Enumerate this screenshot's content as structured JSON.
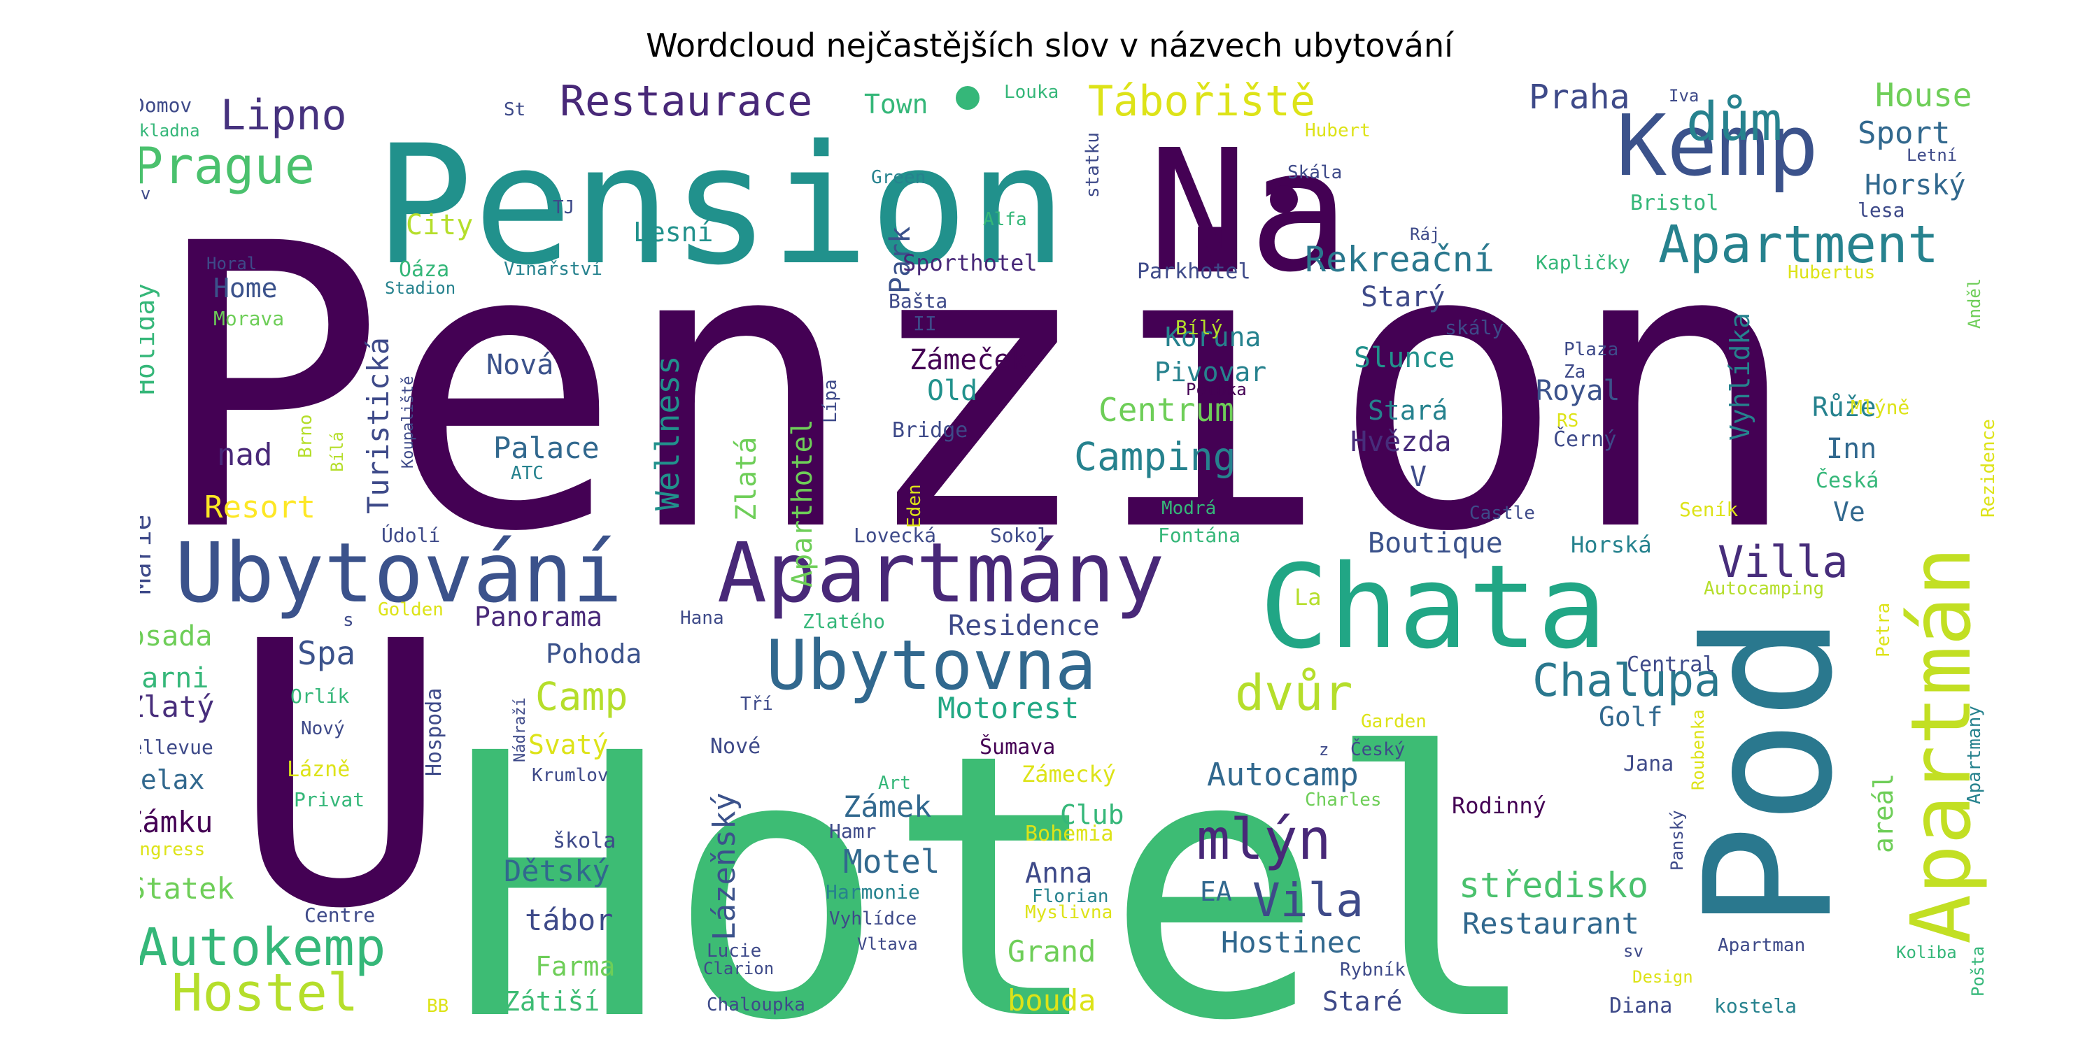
{
  "chart_data": {
    "type": "wordcloud",
    "title": "Wordcloud nejčastějších slov v názvech ubytování",
    "palette": [
      "#440154",
      "#482878",
      "#3e4a89",
      "#31688e",
      "#26828e",
      "#1f9e89",
      "#35b779",
      "#6ece58",
      "#b5de2b",
      "#fde725"
    ],
    "words": [
      {
        "text": "Penzion",
        "weight": 100,
        "color": "#440154"
      },
      {
        "text": "Hotel",
        "weight": 92,
        "color": "#3dbc74"
      },
      {
        "text": "Pension",
        "weight": 70,
        "color": "#21918c"
      },
      {
        "text": "U",
        "weight": 62,
        "color": "#440154"
      },
      {
        "text": "Na",
        "weight": 55,
        "color": "#440154"
      },
      {
        "text": "Chata",
        "weight": 42,
        "color": "#21a685"
      },
      {
        "text": "Pod",
        "weight": 38,
        "color": "#2a788e"
      },
      {
        "text": "Kemp",
        "weight": 26,
        "color": "#3b528b"
      },
      {
        "text": "Ubytování",
        "weight": 26,
        "color": "#3b528b"
      },
      {
        "text": "Apartmány",
        "weight": 26,
        "color": "#482878"
      },
      {
        "text": "Apartmán",
        "weight": 25,
        "color": "#c2df23"
      },
      {
        "text": "Ubytovna",
        "weight": 21,
        "color": "#31688e"
      },
      {
        "text": "dům",
        "weight": 16,
        "color": "#26828e"
      },
      {
        "text": "Apartment",
        "weight": 15,
        "color": "#26828e"
      },
      {
        "text": "Restaurace",
        "weight": 13,
        "color": "#482878"
      },
      {
        "text": "Prague",
        "weight": 13,
        "color": "#4ac16d"
      },
      {
        "text": "Tábořiště",
        "weight": 13,
        "color": "#dde318"
      },
      {
        "text": "Lipno",
        "weight": 12,
        "color": "#46327e"
      },
      {
        "text": "Villa",
        "weight": 12,
        "color": "#472d7b"
      },
      {
        "text": "mlýn",
        "weight": 15,
        "color": "#482878"
      },
      {
        "text": "Vila",
        "weight": 13,
        "color": "#3e4a89"
      },
      {
        "text": "Chalupa",
        "weight": 13,
        "color": "#2a788e"
      },
      {
        "text": "dvůr",
        "weight": 13,
        "color": "#b5de2b"
      },
      {
        "text": "Autokemp",
        "weight": 14,
        "color": "#35b779"
      },
      {
        "text": "Hostel",
        "weight": 14,
        "color": "#b5de2b"
      },
      {
        "text": "Rekreační",
        "weight": 10,
        "color": "#2a788e"
      },
      {
        "text": "Praha",
        "weight": 9,
        "color": "#3e4a89"
      },
      {
        "text": "Sport",
        "weight": 9,
        "color": "#31688e"
      },
      {
        "text": "House",
        "weight": 9,
        "color": "#6ece58"
      },
      {
        "text": "Horský",
        "weight": 8,
        "color": "#31688e"
      },
      {
        "text": "Camping",
        "weight": 10,
        "color": "#26828e"
      },
      {
        "text": "Centrum",
        "weight": 9,
        "color": "#6ece58"
      },
      {
        "text": "Wellness",
        "weight": 10,
        "color": "#21918c"
      },
      {
        "text": "Camp",
        "weight": 10,
        "color": "#b5de2b"
      },
      {
        "text": "Spa",
        "weight": 9,
        "color": "#3b528b"
      },
      {
        "text": "Resort",
        "weight": 8,
        "color": "#fde725"
      },
      {
        "text": "Motorest",
        "weight": 8,
        "color": "#22a884"
      },
      {
        "text": "Autocamp",
        "weight": 9,
        "color": "#31688e"
      },
      {
        "text": "Residence",
        "weight": 8,
        "color": "#3e4a89"
      },
      {
        "text": "Restaurant",
        "weight": 8,
        "color": "#31688e"
      },
      {
        "text": "Hostinec",
        "weight": 8,
        "color": "#31688e"
      },
      {
        "text": "Grand",
        "weight": 8,
        "color": "#6ece58"
      },
      {
        "text": "bouda",
        "weight": 8,
        "color": "#dde318"
      },
      {
        "text": "Boutique",
        "weight": 7,
        "color": "#3b528b"
      },
      {
        "text": "středisko",
        "weight": 9,
        "color": "#4ac16d"
      },
      {
        "text": "Zámek",
        "weight": 8,
        "color": "#31688e"
      },
      {
        "text": "Motel",
        "weight": 8,
        "color": "#31688e"
      },
      {
        "text": "Dětský",
        "weight": 8,
        "color": "#31688e"
      },
      {
        "text": "tábor",
        "weight": 8,
        "color": "#3e4a89"
      },
      {
        "text": "Farma",
        "weight": 7,
        "color": "#6ece58"
      },
      {
        "text": "Zátiší",
        "weight": 7,
        "color": "#3dbc74"
      },
      {
        "text": "Lázeňský",
        "weight": 7,
        "color": "#3b528b"
      },
      {
        "text": "Statek",
        "weight": 7,
        "color": "#6ece58"
      },
      {
        "text": "Zámku",
        "weight": 7,
        "color": "#440154"
      },
      {
        "text": "Relax",
        "weight": 7,
        "color": "#31688e"
      },
      {
        "text": "Zlatý",
        "weight": 7,
        "color": "#472d7b"
      },
      {
        "text": "Garni",
        "weight": 7,
        "color": "#35b779"
      },
      {
        "text": "osada",
        "weight": 7,
        "color": "#6ece58"
      },
      {
        "text": "Marie",
        "weight": 7,
        "color": "#3e4a89"
      },
      {
        "text": "Holiday",
        "weight": 7,
        "color": "#35b779"
      },
      {
        "text": "Home",
        "weight": 7,
        "color": "#3b528b"
      },
      {
        "text": "City",
        "weight": 7,
        "color": "#b5de2b"
      },
      {
        "text": "Palace",
        "weight": 7,
        "color": "#31688e"
      },
      {
        "text": "Nová",
        "weight": 7,
        "color": "#3b528b"
      },
      {
        "text": "nad",
        "weight": 8,
        "color": "#482878"
      },
      {
        "text": "Turistická",
        "weight": 8,
        "color": "#3e4a89"
      },
      {
        "text": "Lesní",
        "weight": 7,
        "color": "#21918c"
      },
      {
        "text": "Park",
        "weight": 7,
        "color": "#3b528b"
      },
      {
        "text": "Zlatá",
        "weight": 7,
        "color": "#6ece58"
      },
      {
        "text": "Aparthotel",
        "weight": 7,
        "color": "#6ece58"
      },
      {
        "text": "Zámeček",
        "weight": 7,
        "color": "#440154"
      },
      {
        "text": "Old",
        "weight": 7,
        "color": "#21918c"
      },
      {
        "text": "Koruna",
        "weight": 7,
        "color": "#26828e"
      },
      {
        "text": "Pivovar",
        "weight": 7,
        "color": "#26828e"
      },
      {
        "text": "Slunce",
        "weight": 7,
        "color": "#21918c"
      },
      {
        "text": "Starý",
        "weight": 7,
        "color": "#3e4a89"
      },
      {
        "text": "Stará",
        "weight": 7,
        "color": "#26828e"
      },
      {
        "text": "Hvězda",
        "weight": 7,
        "color": "#472d7b"
      },
      {
        "text": "V",
        "weight": 7,
        "color": "#3e4a89"
      },
      {
        "text": "Royal",
        "weight": 7,
        "color": "#3b528b"
      },
      {
        "text": "Vyhlídka",
        "weight": 7,
        "color": "#26828e"
      },
      {
        "text": "Růže",
        "weight": 7,
        "color": "#26828e"
      },
      {
        "text": "Inn",
        "weight": 7,
        "color": "#31688e"
      },
      {
        "text": "Ve",
        "weight": 7,
        "color": "#31688e"
      },
      {
        "text": "Town",
        "weight": 7,
        "color": "#35b779"
      },
      {
        "text": "Pohoda",
        "weight": 7,
        "color": "#3b528b"
      },
      {
        "text": "Panorama",
        "weight": 7,
        "color": "#482878"
      },
      {
        "text": "Svatý",
        "weight": 7,
        "color": "#dde318"
      },
      {
        "text": "Golf",
        "weight": 7,
        "color": "#31688e"
      },
      {
        "text": "areál",
        "weight": 7,
        "color": "#6ece58"
      },
      {
        "text": "Club",
        "weight": 7,
        "color": "#35b779"
      },
      {
        "text": "Anna",
        "weight": 7,
        "color": "#3e4a89"
      },
      {
        "text": "EA",
        "weight": 7,
        "color": "#31688e"
      },
      {
        "text": "Staré",
        "weight": 7,
        "color": "#3e4a89"
      },
      {
        "text": "Sporthotel",
        "weight": 6,
        "color": "#482878"
      },
      {
        "text": "Bašta",
        "weight": 5,
        "color": "#3e4a89"
      },
      {
        "text": "II",
        "weight": 5,
        "color": "#3e4a89"
      },
      {
        "text": "Parkhotel",
        "weight": 5,
        "color": "#3e4a89"
      },
      {
        "text": "Bílý",
        "weight": 5,
        "color": "#b5de2b"
      },
      {
        "text": "skály",
        "weight": 5,
        "color": "#3e4a89"
      },
      {
        "text": "Plaza",
        "weight": 5,
        "color": "#3e4a89"
      },
      {
        "text": "Za",
        "weight": 5,
        "color": "#3e4a89"
      },
      {
        "text": "Potoka",
        "weight": 5,
        "color": "#440154"
      },
      {
        "text": "RS",
        "weight": 5,
        "color": "#dde318"
      },
      {
        "text": "Černý",
        "weight": 5,
        "color": "#3e4a89"
      },
      {
        "text": "Bridge",
        "weight": 5,
        "color": "#3e4a89"
      },
      {
        "text": "Lípa",
        "weight": 5,
        "color": "#3e4a89"
      },
      {
        "text": "Eden",
        "weight": 5,
        "color": "#dde318"
      },
      {
        "text": "Castle",
        "weight": 5,
        "color": "#3e4a89"
      },
      {
        "text": "Lovecká",
        "weight": 5,
        "color": "#3e4a89"
      },
      {
        "text": "Sokol",
        "weight": 5,
        "color": "#3e4a89"
      },
      {
        "text": "Fontána",
        "weight": 5,
        "color": "#35b779"
      },
      {
        "text": "Modrá",
        "weight": 5,
        "color": "#35b779"
      },
      {
        "text": "Horská",
        "weight": 6,
        "color": "#26828e"
      },
      {
        "text": "Seník",
        "weight": 5,
        "color": "#dde318"
      },
      {
        "text": "Česká",
        "weight": 5,
        "color": "#35b779"
      },
      {
        "text": "Mlýně",
        "weight": 5,
        "color": "#dde318"
      },
      {
        "text": "Anděl",
        "weight": 5,
        "color": "#6ece58"
      },
      {
        "text": "Rezidence",
        "weight": 5,
        "color": "#dde318"
      },
      {
        "text": "Hubertus",
        "weight": 5,
        "color": "#dde318"
      },
      {
        "text": "Kapličky",
        "weight": 5,
        "color": "#35b779"
      },
      {
        "text": "Bristol",
        "weight": 5,
        "color": "#35b779"
      },
      {
        "text": "lesa",
        "weight": 5,
        "color": "#3e4a89"
      },
      {
        "text": "Letní",
        "weight": 5,
        "color": "#3e4a89"
      },
      {
        "text": "Iva",
        "weight": 5,
        "color": "#3e4a89"
      },
      {
        "text": "Hubert",
        "weight": 5,
        "color": "#dde318"
      },
      {
        "text": "Skála",
        "weight": 5,
        "color": "#3e4a89"
      },
      {
        "text": "Ráj",
        "weight": 5,
        "color": "#3e4a89"
      },
      {
        "text": "statku",
        "weight": 5,
        "color": "#3e4a89"
      },
      {
        "text": "Louka",
        "weight": 5,
        "color": "#35b779"
      },
      {
        "text": "Green",
        "weight": 5,
        "color": "#26828e"
      },
      {
        "text": "Alfa",
        "weight": 5,
        "color": "#35b779"
      },
      {
        "text": "TJ",
        "weight": 5,
        "color": "#3e4a89"
      },
      {
        "text": "St",
        "weight": 5,
        "color": "#3e4a89"
      },
      {
        "text": "Domov",
        "weight": 6,
        "color": "#3e4a89"
      },
      {
        "text": "základna",
        "weight": 5,
        "color": "#35b779"
      },
      {
        "text": "Lev",
        "weight": 5,
        "color": "#3e4a89"
      },
      {
        "text": "Horal",
        "weight": 5,
        "color": "#3e4a89"
      },
      {
        "text": "Oáza",
        "weight": 6,
        "color": "#35b779"
      },
      {
        "text": "Stadion",
        "weight": 5,
        "color": "#26828e"
      },
      {
        "text": "Vinařství",
        "weight": 5,
        "color": "#26828e"
      },
      {
        "text": "Morava",
        "weight": 5,
        "color": "#6ece58"
      },
      {
        "text": "Koupaliště",
        "weight": 5,
        "color": "#3e4a89"
      },
      {
        "text": "Bílá",
        "weight": 5,
        "color": "#b5de2b"
      },
      {
        "text": "Brno",
        "weight": 5,
        "color": "#b5de2b"
      },
      {
        "text": "ATC",
        "weight": 5,
        "color": "#26828e"
      },
      {
        "text": "Údolí",
        "weight": 5,
        "color": "#3e4a89"
      },
      {
        "text": "Golden",
        "weight": 5,
        "color": "#dde318"
      },
      {
        "text": "s",
        "weight": 5,
        "color": "#3e4a89"
      },
      {
        "text": "Hana",
        "weight": 5,
        "color": "#3e4a89"
      },
      {
        "text": "Zlatého",
        "weight": 5,
        "color": "#35b779"
      },
      {
        "text": "La",
        "weight": 5,
        "color": "#b5de2b"
      },
      {
        "text": "Autocamping",
        "weight": 5,
        "color": "#b5de2b"
      },
      {
        "text": "Petra",
        "weight": 5,
        "color": "#dde318"
      },
      {
        "text": "Apartmany",
        "weight": 5,
        "color": "#26828e"
      },
      {
        "text": "Central",
        "weight": 6,
        "color": "#3e4a89"
      },
      {
        "text": "Garden",
        "weight": 5,
        "color": "#dde318"
      },
      {
        "text": "Český",
        "weight": 5,
        "color": "#3e4a89"
      },
      {
        "text": "z",
        "weight": 5,
        "color": "#3e4a89"
      },
      {
        "text": "Jana",
        "weight": 6,
        "color": "#3e4a89"
      },
      {
        "text": "Roubenka",
        "weight": 5,
        "color": "#dde318"
      },
      {
        "text": "Panský",
        "weight": 5,
        "color": "#3e4a89"
      },
      {
        "text": "Charles",
        "weight": 5,
        "color": "#6ece58"
      },
      {
        "text": "Rodinný",
        "weight": 6,
        "color": "#440154"
      },
      {
        "text": "Hospoda",
        "weight": 6,
        "color": "#3e4a89"
      },
      {
        "text": "Nádraží",
        "weight": 5,
        "color": "#3e4a89"
      },
      {
        "text": "Krumlov",
        "weight": 5,
        "color": "#3e4a89"
      },
      {
        "text": "Orlík",
        "weight": 5,
        "color": "#35b779"
      },
      {
        "text": "Nový",
        "weight": 5,
        "color": "#3e4a89"
      },
      {
        "text": "Bellevue",
        "weight": 5,
        "color": "#3e4a89"
      },
      {
        "text": "Lázně",
        "weight": 6,
        "color": "#dde318"
      },
      {
        "text": "Privat",
        "weight": 5,
        "color": "#35b779"
      },
      {
        "text": "Congress",
        "weight": 5,
        "color": "#dde318"
      },
      {
        "text": "Tří",
        "weight": 5,
        "color": "#3e4a89"
      },
      {
        "text": "Nové",
        "weight": 6,
        "color": "#3e4a89"
      },
      {
        "text": "Šumava",
        "weight": 6,
        "color": "#440154"
      },
      {
        "text": "Zámecký",
        "weight": 6,
        "color": "#dde318"
      },
      {
        "text": "Art",
        "weight": 5,
        "color": "#35b779"
      },
      {
        "text": "Hamr",
        "weight": 5,
        "color": "#3e4a89"
      },
      {
        "text": "Bohemia",
        "weight": 6,
        "color": "#dde318"
      },
      {
        "text": "Harmonie",
        "weight": 5,
        "color": "#26828e"
      },
      {
        "text": "Vyhlídce",
        "weight": 5,
        "color": "#3e4a89"
      },
      {
        "text": "Florian",
        "weight": 5,
        "color": "#26828e"
      },
      {
        "text": "Myslivna",
        "weight": 5,
        "color": "#dde318"
      },
      {
        "text": "Vltava",
        "weight": 5,
        "color": "#3e4a89"
      },
      {
        "text": "škola",
        "weight": 5,
        "color": "#3e4a89"
      },
      {
        "text": "Centre",
        "weight": 5,
        "color": "#3e4a89"
      },
      {
        "text": "Lucie",
        "weight": 5,
        "color": "#3e4a89"
      },
      {
        "text": "Clarion",
        "weight": 5,
        "color": "#3e4a89"
      },
      {
        "text": "Chaloupka",
        "weight": 5,
        "color": "#3e4a89"
      },
      {
        "text": "BB",
        "weight": 5,
        "color": "#dde318"
      },
      {
        "text": "Rybník",
        "weight": 5,
        "color": "#3e4a89"
      },
      {
        "text": "Design",
        "weight": 5,
        "color": "#dde318"
      },
      {
        "text": "Diana",
        "weight": 6,
        "color": "#3e4a89"
      },
      {
        "text": "sv",
        "weight": 5,
        "color": "#3e4a89"
      },
      {
        "text": "Apartman",
        "weight": 5,
        "color": "#3e4a89"
      },
      {
        "text": "kostela",
        "weight": 5,
        "color": "#26828e"
      },
      {
        "text": "Koliba",
        "weight": 5,
        "color": "#35b779"
      },
      {
        "text": "Pošta",
        "weight": 5,
        "color": "#35b779"
      }
    ]
  }
}
